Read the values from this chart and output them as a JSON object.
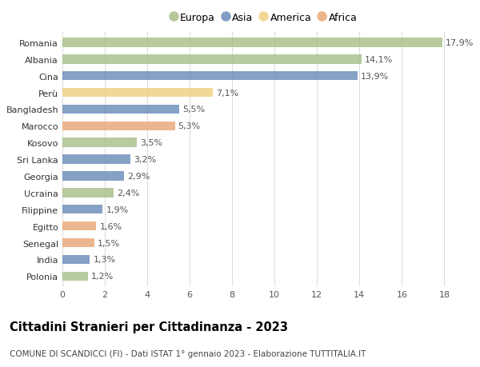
{
  "countries": [
    "Romania",
    "Albania",
    "Cina",
    "Perù",
    "Bangladesh",
    "Marocco",
    "Kosovo",
    "Sri Lanka",
    "Georgia",
    "Ucraina",
    "Filippine",
    "Egitto",
    "Senegal",
    "India",
    "Polonia"
  ],
  "values": [
    17.9,
    14.1,
    13.9,
    7.1,
    5.5,
    5.3,
    3.5,
    3.2,
    2.9,
    2.4,
    1.9,
    1.6,
    1.5,
    1.3,
    1.2
  ],
  "continents": [
    "Europa",
    "Europa",
    "Asia",
    "America",
    "Asia",
    "Africa",
    "Europa",
    "Asia",
    "Asia",
    "Europa",
    "Asia",
    "Africa",
    "Africa",
    "Asia",
    "Europa"
  ],
  "colors": {
    "Europa": "#a8c08a",
    "Asia": "#6b8cba",
    "America": "#f0d080",
    "Africa": "#e8a878"
  },
  "legend_order": [
    "Europa",
    "Asia",
    "America",
    "Africa"
  ],
  "title1": "Cittadini Stranieri per Cittadinanza - 2023",
  "title2": "COMUNE DI SCANDICCI (FI) - Dati ISTAT 1° gennaio 2023 - Elaborazione TUTTITALIA.IT",
  "xlim": [
    0,
    19
  ],
  "xticks": [
    0,
    2,
    4,
    6,
    8,
    10,
    12,
    14,
    16,
    18
  ],
  "bar_height": 0.55,
  "background_color": "#ffffff",
  "grid_color": "#dddddd",
  "label_fontsize": 8,
  "tick_fontsize": 8,
  "title1_fontsize": 10.5,
  "title2_fontsize": 7.5
}
